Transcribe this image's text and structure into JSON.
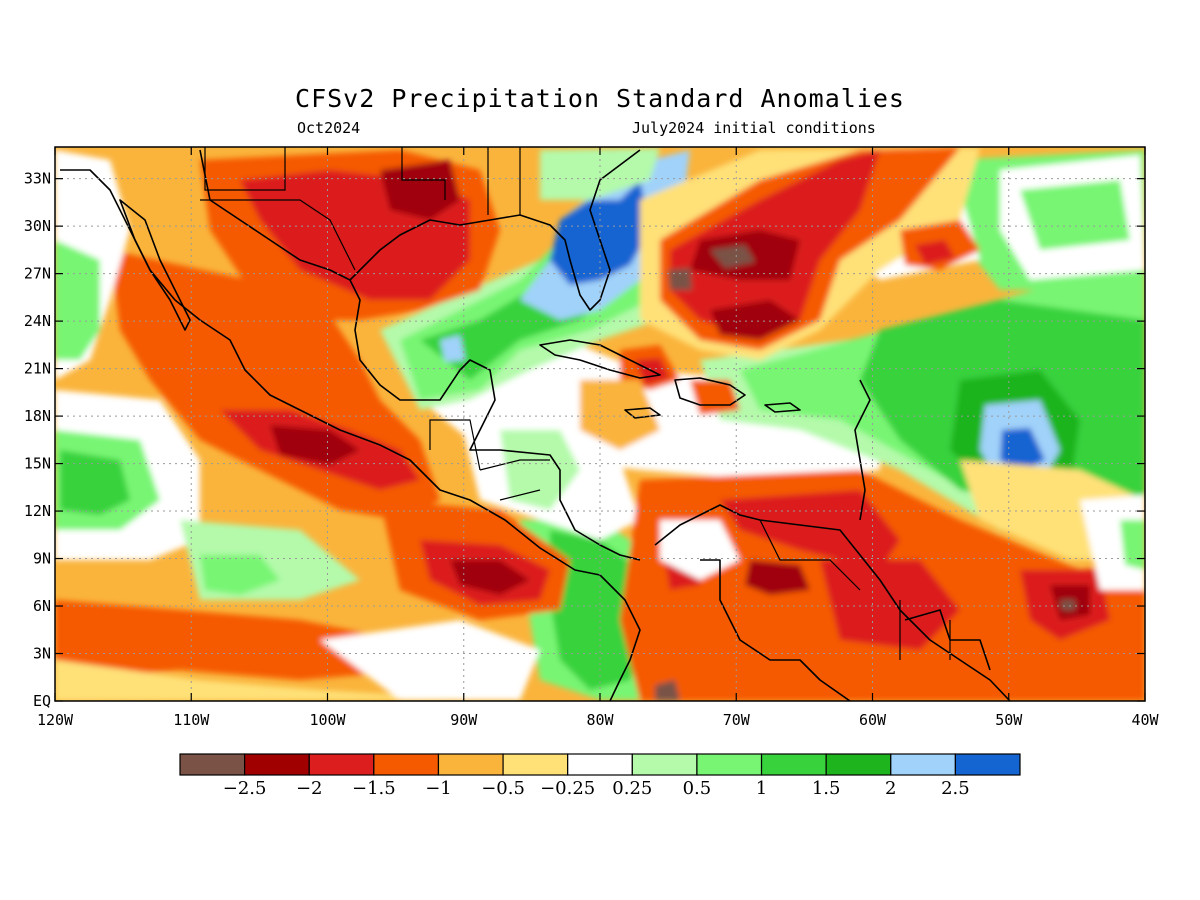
{
  "title": "CFSv2 Precipitation Standard Anomalies",
  "subtitle_left": "Oct2024",
  "subtitle_right": "July2024 initial conditions",
  "map": {
    "lon_labels": [
      "120W",
      "110W",
      "100W",
      "90W",
      "80W",
      "70W",
      "60W",
      "50W",
      "40W"
    ],
    "lat_labels": [
      "EQ",
      "3N",
      "6N",
      "9N",
      "12N",
      "15N",
      "18N",
      "21N",
      "24N",
      "27N",
      "30N",
      "33N"
    ],
    "lon_range": [
      -120,
      -40
    ],
    "lat_range": [
      0,
      35
    ]
  },
  "colorbar": {
    "colors": [
      "#7a5246",
      "#a00000",
      "#dc1e1e",
      "#f55a00",
      "#fab43c",
      "#ffe178",
      "#ffffff",
      "#b4faaa",
      "#78f573",
      "#37d23c",
      "#1eb41e",
      "#a0d2fa",
      "#1464d2"
    ],
    "labels": [
      "−2.5",
      "−2",
      "−1.5",
      "−1",
      "−0.5",
      "−0.25",
      "0.25",
      "0.5",
      "1",
      "1.5",
      "2",
      "2.5"
    ]
  },
  "anomaly_regions": [
    {
      "name": "gulf-coast-dry",
      "lon": -94,
      "lat": 29,
      "class": -1.5
    },
    {
      "name": "florida-wet",
      "lon": -81,
      "lat": 28,
      "class": 2.5
    },
    {
      "name": "atlantic-dry",
      "lon": -70,
      "lat": 27,
      "class": -2.5
    },
    {
      "name": "mexico-pacific-dry",
      "lon": -98,
      "lat": 16,
      "class": -1.5
    },
    {
      "name": "east-atlantic-wet",
      "lon": -51,
      "lat": 15,
      "class": 2.5
    },
    {
      "name": "panama-pacific-dry",
      "lon": -88,
      "lat": 8,
      "class": -2
    },
    {
      "name": "south-america-dry",
      "lon": -62,
      "lat": 5,
      "class": -1
    }
  ]
}
